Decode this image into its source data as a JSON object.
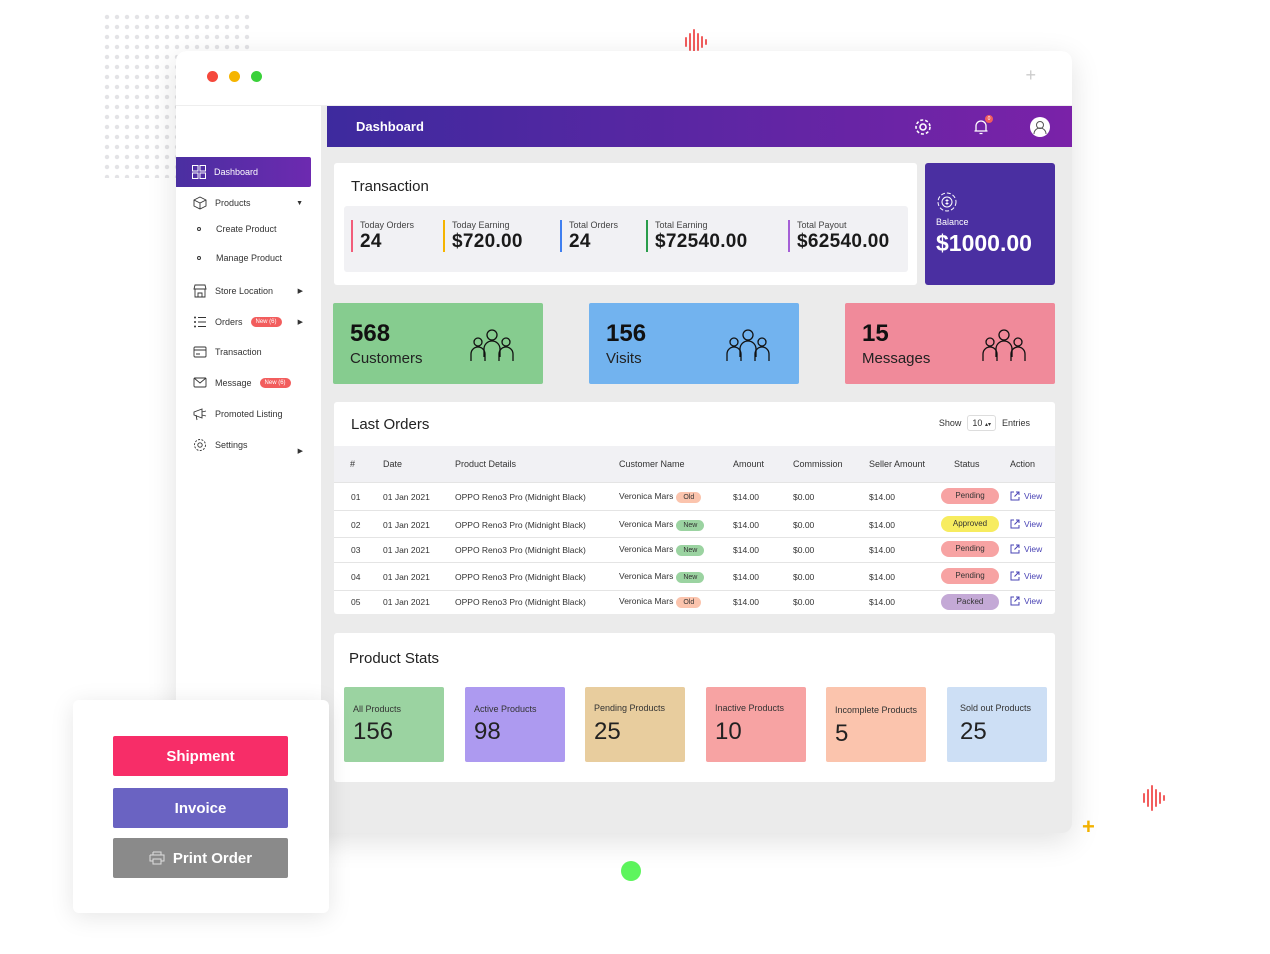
{
  "topbar": {
    "title": "Dashboard",
    "notification_count": "0"
  },
  "sidebar": {
    "items": [
      {
        "label": "Dashboard",
        "icon": "grid-icon"
      },
      {
        "label": "Products",
        "icon": "box-icon"
      },
      {
        "label": "Create Product",
        "icon": "bullet"
      },
      {
        "label": "Manage Product",
        "icon": "bullet"
      },
      {
        "label": "Store Location",
        "icon": "store-icon"
      },
      {
        "label": "Orders",
        "icon": "list-icon",
        "badge": "New (6)"
      },
      {
        "label": "Transaction",
        "icon": "transaction-icon"
      },
      {
        "label": "Message",
        "icon": "message-icon",
        "badge": "New (6)"
      },
      {
        "label": "Promoted Listing",
        "icon": "promote-icon"
      },
      {
        "label": "Settings",
        "icon": "gear-icon"
      }
    ]
  },
  "transaction": {
    "title": "Transaction",
    "stats": [
      {
        "label": "Today Orders",
        "value": "24",
        "color": "#f25d7a"
      },
      {
        "label": "Today Earning",
        "value": "$720.00",
        "color": "#f5b400"
      },
      {
        "label": "Total Orders",
        "value": "24",
        "color": "#3f7ff0"
      },
      {
        "label": "Total Earning",
        "value": "$72540.00",
        "color": "#2a9d4b"
      },
      {
        "label": "Total Payout",
        "value": "$62540.00",
        "color": "#a55fd6"
      }
    ]
  },
  "balance": {
    "label": "Balance",
    "value": "$1000.00"
  },
  "kpis": [
    {
      "value": "568",
      "label": "Customers",
      "color": "#86cc8f"
    },
    {
      "value": "156",
      "label": "Visits",
      "color": "#72b3ef"
    },
    {
      "value": "15",
      "label": "Messages",
      "color": "#f08a9a"
    }
  ],
  "orders": {
    "title": "Last Orders",
    "show_label": "Show",
    "entries_value": "10",
    "entries_label": "Entries",
    "columns": [
      "#",
      "Date",
      "Product Details",
      "Customer Name",
      "Amount",
      "Commission",
      "Seller Amount",
      "Status",
      "Action"
    ],
    "rows": [
      {
        "num": "01",
        "date": "01 Jan 2021",
        "product": "OPPO Reno3 Pro (Midnight Black)",
        "customer": "Veronica Mars",
        "tag": "Old",
        "amount": "$14.00",
        "commission": "$0.00",
        "seller": "$14.00",
        "status": "Pending",
        "action": "View"
      },
      {
        "num": "02",
        "date": "01 Jan 2021",
        "product": "OPPO Reno3 Pro (Midnight Black)",
        "customer": "Veronica Mars",
        "tag": "New",
        "amount": "$14.00",
        "commission": "$0.00",
        "seller": "$14.00",
        "status": "Approved",
        "action": "View"
      },
      {
        "num": "03",
        "date": "01 Jan 2021",
        "product": "OPPO Reno3 Pro (Midnight Black)",
        "customer": "Veronica Mars",
        "tag": "New",
        "amount": "$14.00",
        "commission": "$0.00",
        "seller": "$14.00",
        "status": "Pending",
        "action": "View"
      },
      {
        "num": "04",
        "date": "01 Jan 2021",
        "product": "OPPO Reno3 Pro (Midnight Black)",
        "customer": "Veronica Mars",
        "tag": "New",
        "amount": "$14.00",
        "commission": "$0.00",
        "seller": "$14.00",
        "status": "Pending",
        "action": "View"
      },
      {
        "num": "05",
        "date": "01 Jan 2021",
        "product": "OPPO Reno3 Pro (Midnight Black)",
        "customer": "Veronica Mars",
        "tag": "Old",
        "amount": "$14.00",
        "commission": "$0.00",
        "seller": "$14.00",
        "status": "Packed",
        "action": "View"
      }
    ]
  },
  "product_stats": {
    "title": "Product Stats",
    "items": [
      {
        "label": "All Products",
        "value": "156",
        "color": "#9bd3a1"
      },
      {
        "label": "Active Products",
        "value": "98",
        "color": "#ad9af0"
      },
      {
        "label": "Pending Products",
        "value": "25",
        "color": "#e8cd9e"
      },
      {
        "label": "Inactive Products",
        "value": "10",
        "color": "#f7a3a3"
      },
      {
        "label": "Incomplete Products",
        "value": "5",
        "color": "#fbc4ad"
      },
      {
        "label": "Sold out Products",
        "value": "25",
        "color": "#cddff5"
      }
    ]
  },
  "actions": {
    "shipment": "Shipment",
    "invoice": "Invoice",
    "print": "Print Order"
  }
}
